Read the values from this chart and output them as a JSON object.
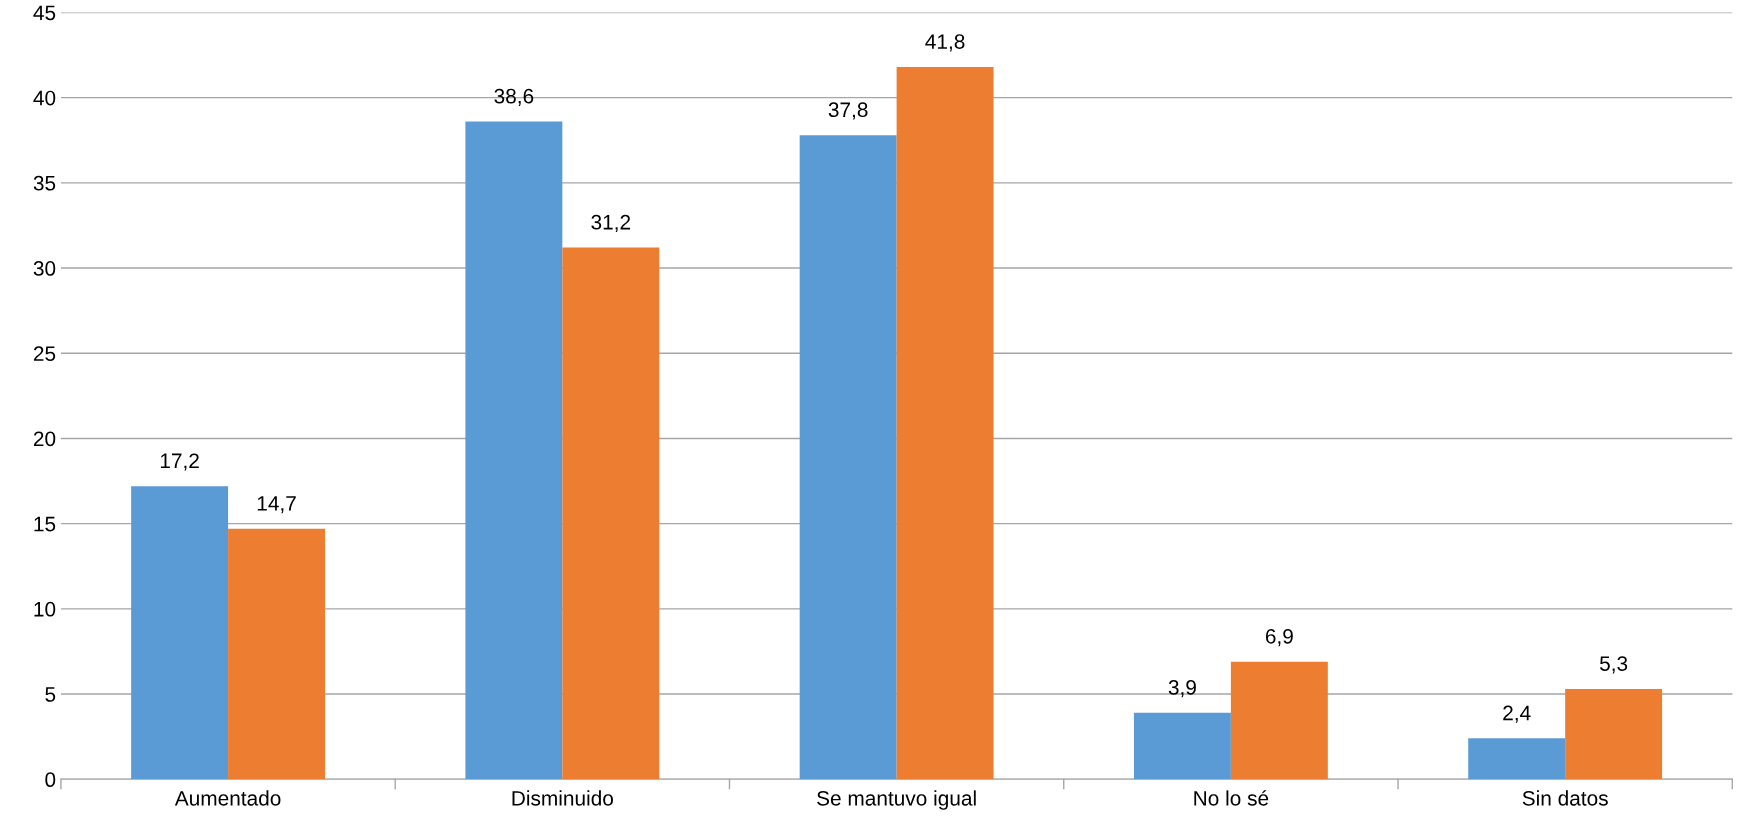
{
  "chart_data": {
    "type": "bar",
    "categories": [
      "Aumentado",
      "Disminuido",
      "Se mantuvo igual",
      "No lo sé",
      "Sin datos"
    ],
    "series": [
      {
        "color": "#5b9bd5",
        "values": [
          17.2,
          38.6,
          37.8,
          3.9,
          2.4
        ],
        "value_labels": [
          "17,2",
          "38,6",
          "37,8",
          "3,9",
          "2,4"
        ]
      },
      {
        "color": "#ed7d31",
        "values": [
          14.7,
          31.2,
          41.8,
          6.9,
          5.3
        ],
        "value_labels": [
          "14,7",
          "31,2",
          "41,8",
          "6,9",
          "5,3"
        ]
      }
    ],
    "ylim": [
      0,
      45
    ],
    "yticks": [
      0,
      5,
      10,
      15,
      20,
      25,
      30,
      35,
      40,
      45
    ],
    "grid": "y",
    "legend": false
  }
}
